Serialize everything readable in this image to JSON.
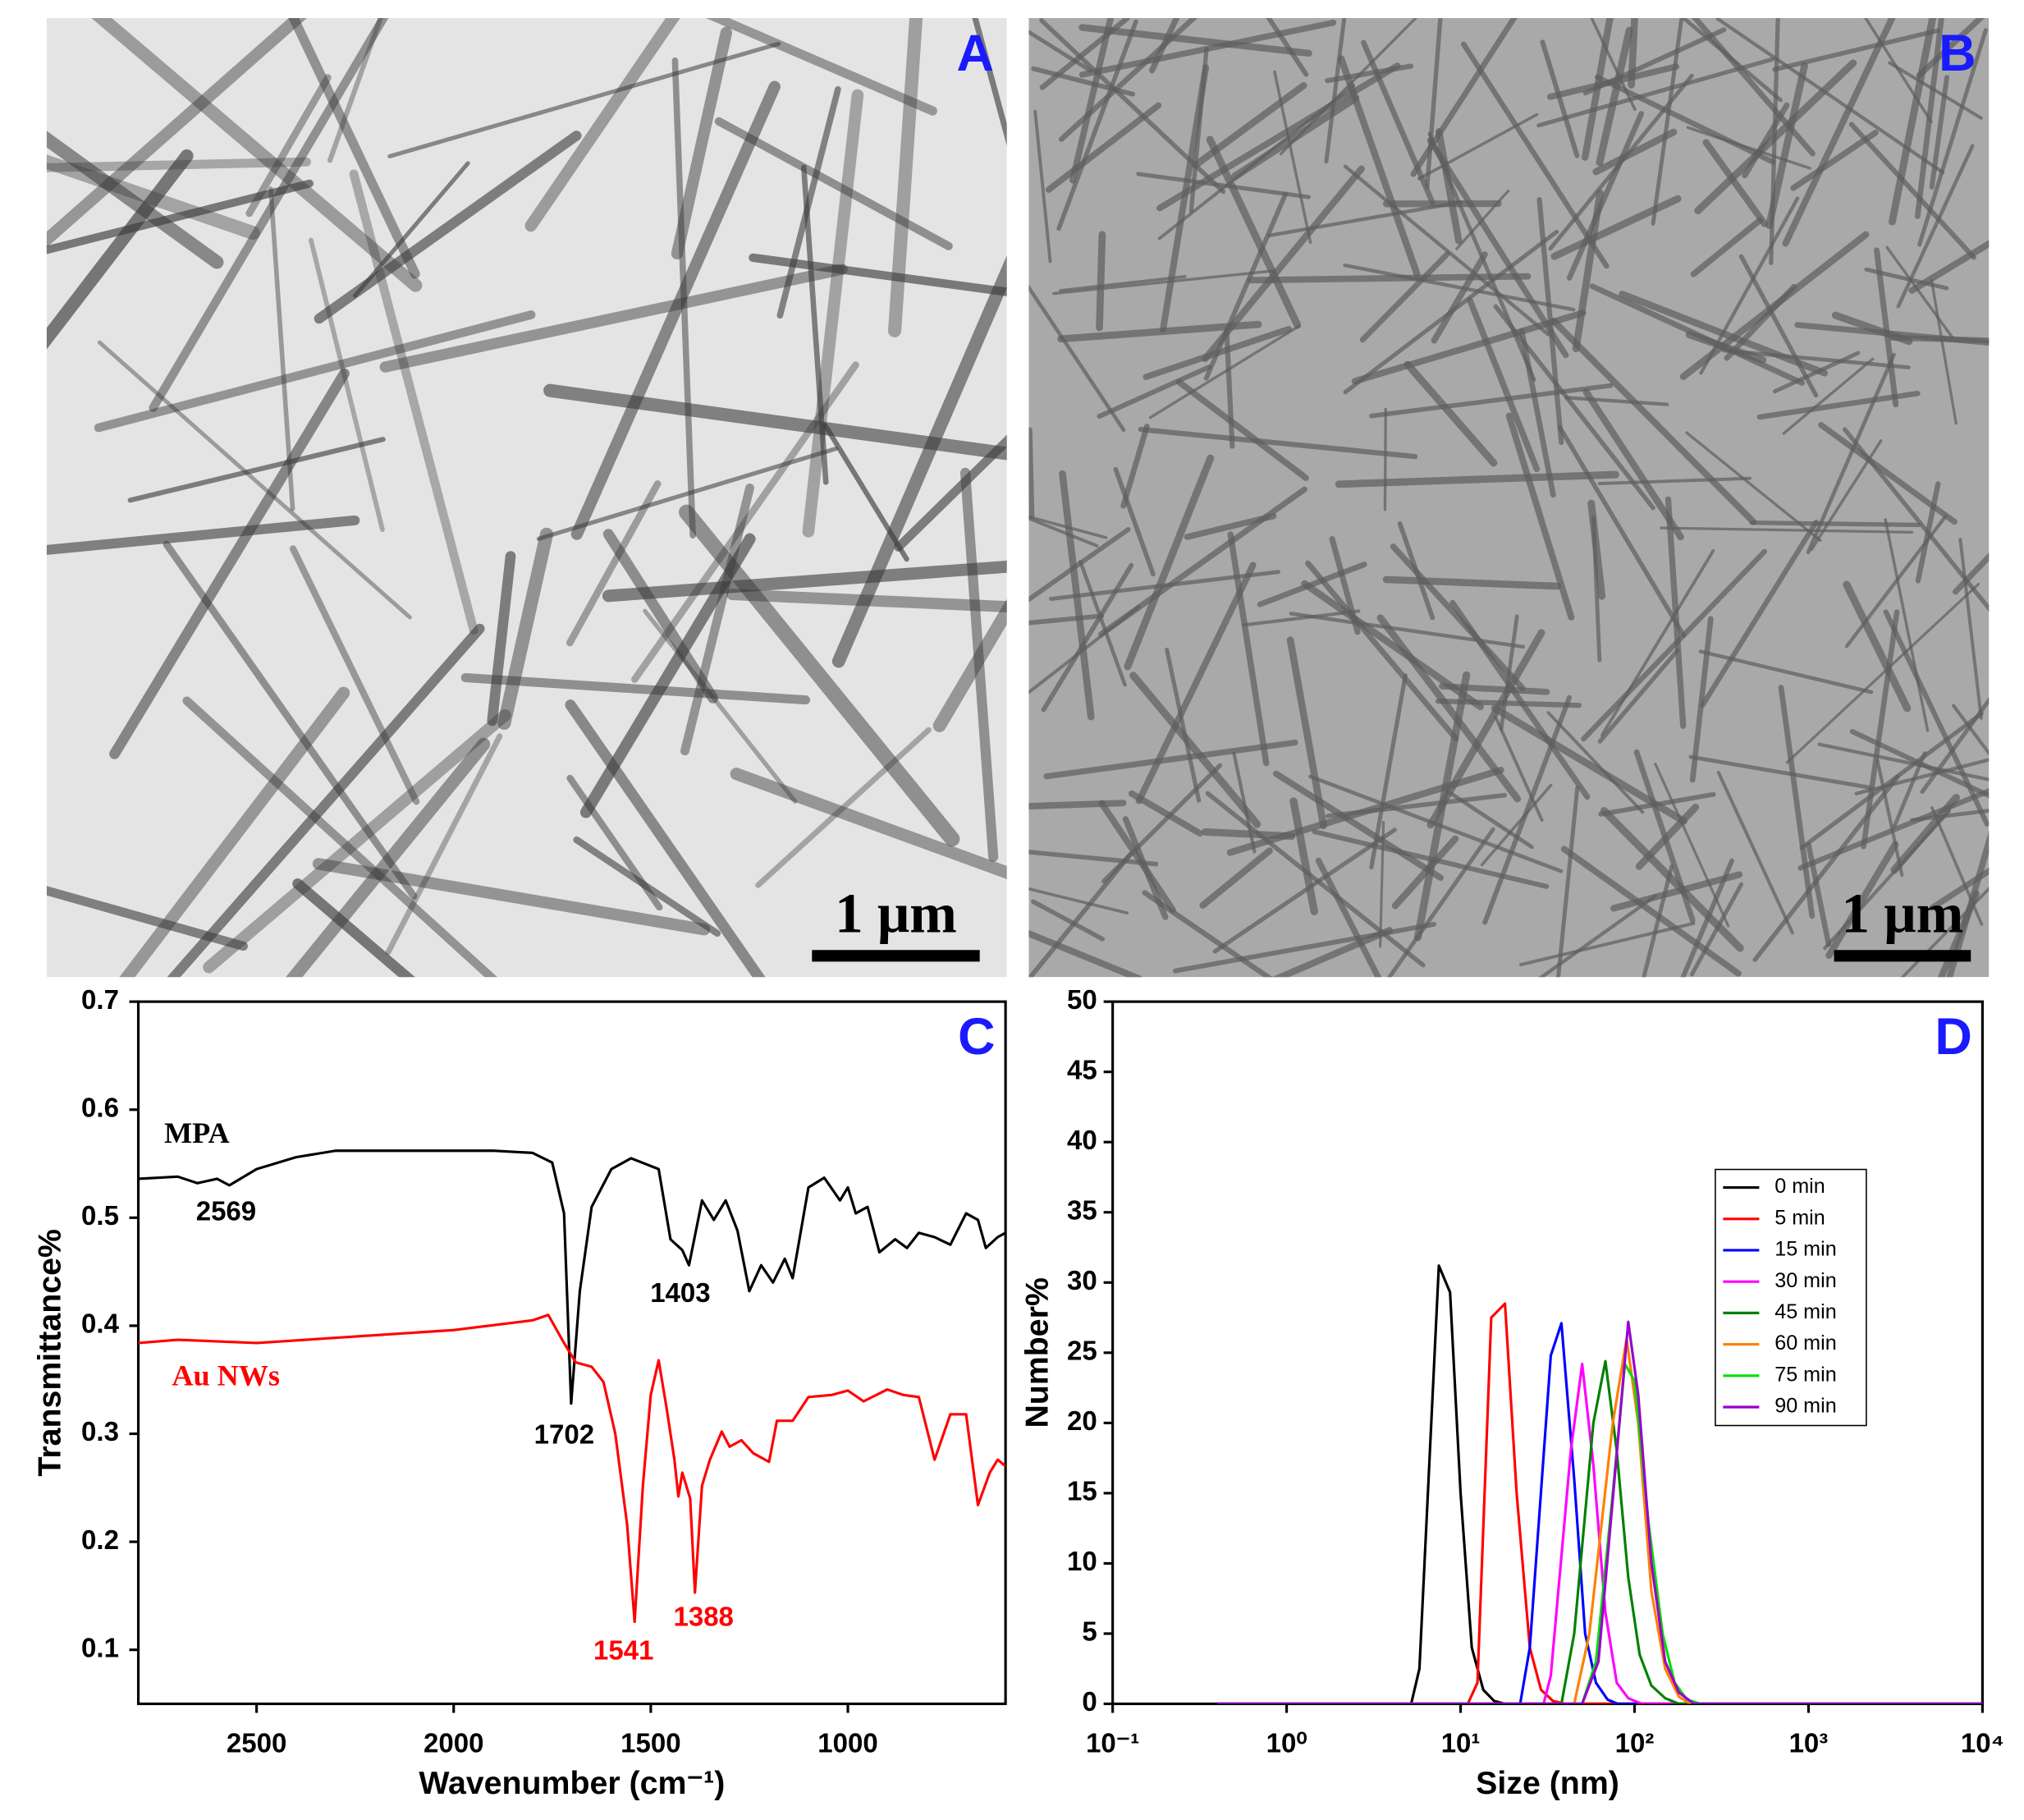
{
  "images": [
    {
      "label": "A",
      "scale_bar": "1 μm"
    },
    {
      "label": "B",
      "scale_bar": "1 μm"
    }
  ],
  "chart_data": [
    {
      "type": "line",
      "panel_label": "C",
      "ylabel": "Transmittance%",
      "xlabel": "Wavenumber (cm⁻¹)",
      "xlim": [
        2800,
        600
      ],
      "xticks": [
        2500,
        2000,
        1500,
        1000
      ],
      "ylim": [
        0.05,
        0.7
      ],
      "yticks": [
        0.1,
        0.2,
        0.3,
        0.4,
        0.5,
        0.6,
        0.7
      ],
      "series": [
        {
          "name": "MPA",
          "color": "#000000",
          "x": [
            2800,
            2700,
            2650,
            2600,
            2569,
            2500,
            2400,
            2300,
            2100,
            1900,
            1800,
            1750,
            1720,
            1702,
            1680,
            1650,
            1600,
            1550,
            1480,
            1450,
            1420,
            1403,
            1370,
            1340,
            1310,
            1280,
            1250,
            1220,
            1190,
            1160,
            1140,
            1100,
            1060,
            1020,
            1000,
            980,
            950,
            920,
            880,
            850,
            820,
            780,
            740,
            700,
            670,
            650,
            620,
            600
          ],
          "values": [
            0.536,
            0.538,
            0.532,
            0.536,
            0.53,
            0.545,
            0.556,
            0.562,
            0.562,
            0.562,
            0.56,
            0.551,
            0.504,
            0.328,
            0.432,
            0.51,
            0.545,
            0.555,
            0.545,
            0.48,
            0.47,
            0.456,
            0.516,
            0.498,
            0.516,
            0.488,
            0.432,
            0.456,
            0.44,
            0.462,
            0.444,
            0.528,
            0.537,
            0.516,
            0.528,
            0.504,
            0.51,
            0.468,
            0.48,
            0.472,
            0.486,
            0.482,
            0.475,
            0.504,
            0.498,
            0.472,
            0.482,
            0.486
          ]
        },
        {
          "name": "Au NWs",
          "color": "#ff0000",
          "x": [
            2800,
            2700,
            2500,
            2000,
            1800,
            1760,
            1720,
            1690,
            1650,
            1620,
            1590,
            1560,
            1541,
            1520,
            1500,
            1480,
            1460,
            1440,
            1430,
            1420,
            1400,
            1388,
            1370,
            1350,
            1320,
            1300,
            1270,
            1240,
            1200,
            1180,
            1140,
            1100,
            1040,
            1000,
            960,
            900,
            860,
            820,
            780,
            740,
            700,
            670,
            640,
            620,
            600
          ],
          "values": [
            0.384,
            0.387,
            0.384,
            0.396,
            0.405,
            0.41,
            0.384,
            0.366,
            0.362,
            0.348,
            0.3,
            0.216,
            0.126,
            0.252,
            0.336,
            0.368,
            0.324,
            0.276,
            0.242,
            0.264,
            0.24,
            0.153,
            0.252,
            0.276,
            0.302,
            0.288,
            0.294,
            0.282,
            0.274,
            0.312,
            0.312,
            0.334,
            0.336,
            0.34,
            0.33,
            0.341,
            0.336,
            0.334,
            0.276,
            0.318,
            0.318,
            0.234,
            0.264,
            0.276,
            0.27
          ]
        }
      ],
      "annotations": [
        {
          "text": "2569",
          "color": "#000000"
        },
        {
          "text": "1403",
          "color": "#000000"
        },
        {
          "text": "1702",
          "color": "#000000"
        },
        {
          "text": "1541",
          "color": "#ff0000"
        },
        {
          "text": "1388",
          "color": "#ff0000"
        }
      ]
    },
    {
      "type": "line",
      "panel_label": "D",
      "ylabel": "Number%",
      "xlabel": "Size (nm)",
      "log_x": true,
      "xlim": [
        0.1,
        10000
      ],
      "xticks": [
        {
          "value": 0.1,
          "label": "10⁻¹"
        },
        {
          "value": 1,
          "label": "10⁰"
        },
        {
          "value": 10,
          "label": "10¹"
        },
        {
          "value": 100,
          "label": "10²"
        },
        {
          "value": 1000,
          "label": "10³"
        },
        {
          "value": 10000,
          "label": "10⁴"
        }
      ],
      "ylim": [
        0,
        50
      ],
      "yticks": [
        0,
        5,
        10,
        15,
        20,
        25,
        30,
        35,
        40,
        45,
        50
      ],
      "series": [
        {
          "name": "0 min",
          "color": "#000000",
          "x": [
            0.4,
            5.2,
            5.8,
            7.5,
            8.7,
            10,
            11.6,
            13.5,
            15.6,
            18,
            10000
          ],
          "values": [
            0,
            0,
            2.5,
            31.2,
            29.3,
            15,
            4,
            1,
            0.2,
            0,
            0
          ]
        },
        {
          "name": "5 min",
          "color": "#ff0000",
          "x": [
            0.4,
            11,
            12.5,
            15,
            18,
            21,
            25,
            29,
            34,
            40,
            10000
          ],
          "values": [
            0,
            0,
            1.5,
            27.5,
            28.5,
            15,
            4,
            1,
            0.2,
            0,
            0
          ]
        },
        {
          "name": "15 min",
          "color": "#0000ff",
          "x": [
            0.4,
            22,
            25,
            33,
            38,
            45,
            52,
            60,
            70,
            80,
            10000
          ],
          "values": [
            0,
            0,
            4,
            24.8,
            27.1,
            16,
            5,
            1.5,
            0.3,
            0,
            0
          ]
        },
        {
          "name": "30 min",
          "color": "#ff00ff",
          "x": [
            0.4,
            30,
            33,
            43,
            50,
            58,
            68,
            79,
            92,
            110,
            10000
          ],
          "values": [
            0,
            0,
            2,
            18,
            24.2,
            17,
            6.5,
            1.5,
            0.4,
            0,
            0
          ]
        },
        {
          "name": "45 min",
          "color": "#008000",
          "x": [
            0.4,
            38,
            45,
            58,
            68,
            79,
            92,
            107,
            125,
            150,
            180,
            10000
          ],
          "values": [
            0,
            0,
            5,
            20,
            24.4,
            18,
            9,
            3.5,
            1.3,
            0.4,
            0,
            0
          ]
        },
        {
          "name": "60 min",
          "color": "#ff8000",
          "x": [
            0.4,
            45,
            55,
            75,
            90,
            105,
            125,
            150,
            180,
            210,
            10000
          ],
          "values": [
            0,
            0,
            5,
            20,
            26,
            20,
            8,
            2.5,
            0.5,
            0,
            0
          ]
        },
        {
          "name": "75 min",
          "color": "#00e000",
          "x": [
            0.4,
            50,
            60,
            75,
            88,
            100,
            120,
            145,
            170,
            200,
            240,
            10000
          ],
          "values": [
            0,
            0,
            3,
            15,
            24.2,
            23,
            13,
            5,
            1.5,
            0.3,
            0,
            0
          ]
        },
        {
          "name": "90 min",
          "color": "#9900cc",
          "x": [
            0.4,
            50,
            62,
            78,
            92,
            105,
            125,
            150,
            180,
            220,
            10000
          ],
          "values": [
            0,
            0,
            3,
            17,
            27.2,
            22,
            10,
            3,
            0.8,
            0,
            0
          ]
        }
      ]
    }
  ]
}
